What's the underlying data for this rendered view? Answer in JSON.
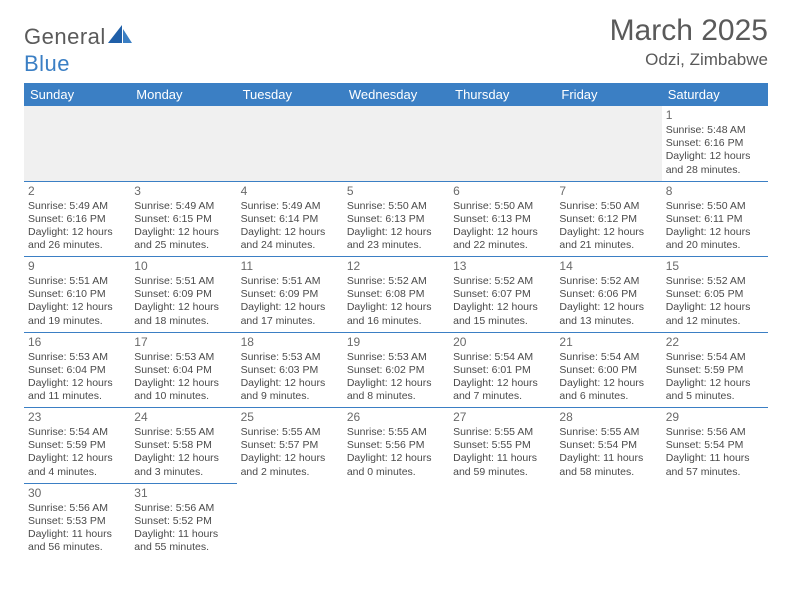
{
  "brand": {
    "name_part1": "General",
    "name_part2": "Blue"
  },
  "title": "March 2025",
  "location": "Odzi, Zimbabwe",
  "colors": {
    "header_bg": "#3b7fc4",
    "header_text": "#ffffff",
    "border": "#3b7fc4",
    "text": "#4a4a4a",
    "muted": "#6a6a6a",
    "empty_bg": "#f0f0f0"
  },
  "day_headers": [
    "Sunday",
    "Monday",
    "Tuesday",
    "Wednesday",
    "Thursday",
    "Friday",
    "Saturday"
  ],
  "weeks": [
    [
      null,
      null,
      null,
      null,
      null,
      null,
      {
        "n": "1",
        "sr": "Sunrise: 5:48 AM",
        "ss": "Sunset: 6:16 PM",
        "d1": "Daylight: 12 hours",
        "d2": "and 28 minutes."
      }
    ],
    [
      {
        "n": "2",
        "sr": "Sunrise: 5:49 AM",
        "ss": "Sunset: 6:16 PM",
        "d1": "Daylight: 12 hours",
        "d2": "and 26 minutes."
      },
      {
        "n": "3",
        "sr": "Sunrise: 5:49 AM",
        "ss": "Sunset: 6:15 PM",
        "d1": "Daylight: 12 hours",
        "d2": "and 25 minutes."
      },
      {
        "n": "4",
        "sr": "Sunrise: 5:49 AM",
        "ss": "Sunset: 6:14 PM",
        "d1": "Daylight: 12 hours",
        "d2": "and 24 minutes."
      },
      {
        "n": "5",
        "sr": "Sunrise: 5:50 AM",
        "ss": "Sunset: 6:13 PM",
        "d1": "Daylight: 12 hours",
        "d2": "and 23 minutes."
      },
      {
        "n": "6",
        "sr": "Sunrise: 5:50 AM",
        "ss": "Sunset: 6:13 PM",
        "d1": "Daylight: 12 hours",
        "d2": "and 22 minutes."
      },
      {
        "n": "7",
        "sr": "Sunrise: 5:50 AM",
        "ss": "Sunset: 6:12 PM",
        "d1": "Daylight: 12 hours",
        "d2": "and 21 minutes."
      },
      {
        "n": "8",
        "sr": "Sunrise: 5:50 AM",
        "ss": "Sunset: 6:11 PM",
        "d1": "Daylight: 12 hours",
        "d2": "and 20 minutes."
      }
    ],
    [
      {
        "n": "9",
        "sr": "Sunrise: 5:51 AM",
        "ss": "Sunset: 6:10 PM",
        "d1": "Daylight: 12 hours",
        "d2": "and 19 minutes."
      },
      {
        "n": "10",
        "sr": "Sunrise: 5:51 AM",
        "ss": "Sunset: 6:09 PM",
        "d1": "Daylight: 12 hours",
        "d2": "and 18 minutes."
      },
      {
        "n": "11",
        "sr": "Sunrise: 5:51 AM",
        "ss": "Sunset: 6:09 PM",
        "d1": "Daylight: 12 hours",
        "d2": "and 17 minutes."
      },
      {
        "n": "12",
        "sr": "Sunrise: 5:52 AM",
        "ss": "Sunset: 6:08 PM",
        "d1": "Daylight: 12 hours",
        "d2": "and 16 minutes."
      },
      {
        "n": "13",
        "sr": "Sunrise: 5:52 AM",
        "ss": "Sunset: 6:07 PM",
        "d1": "Daylight: 12 hours",
        "d2": "and 15 minutes."
      },
      {
        "n": "14",
        "sr": "Sunrise: 5:52 AM",
        "ss": "Sunset: 6:06 PM",
        "d1": "Daylight: 12 hours",
        "d2": "and 13 minutes."
      },
      {
        "n": "15",
        "sr": "Sunrise: 5:52 AM",
        "ss": "Sunset: 6:05 PM",
        "d1": "Daylight: 12 hours",
        "d2": "and 12 minutes."
      }
    ],
    [
      {
        "n": "16",
        "sr": "Sunrise: 5:53 AM",
        "ss": "Sunset: 6:04 PM",
        "d1": "Daylight: 12 hours",
        "d2": "and 11 minutes."
      },
      {
        "n": "17",
        "sr": "Sunrise: 5:53 AM",
        "ss": "Sunset: 6:04 PM",
        "d1": "Daylight: 12 hours",
        "d2": "and 10 minutes."
      },
      {
        "n": "18",
        "sr": "Sunrise: 5:53 AM",
        "ss": "Sunset: 6:03 PM",
        "d1": "Daylight: 12 hours",
        "d2": "and 9 minutes."
      },
      {
        "n": "19",
        "sr": "Sunrise: 5:53 AM",
        "ss": "Sunset: 6:02 PM",
        "d1": "Daylight: 12 hours",
        "d2": "and 8 minutes."
      },
      {
        "n": "20",
        "sr": "Sunrise: 5:54 AM",
        "ss": "Sunset: 6:01 PM",
        "d1": "Daylight: 12 hours",
        "d2": "and 7 minutes."
      },
      {
        "n": "21",
        "sr": "Sunrise: 5:54 AM",
        "ss": "Sunset: 6:00 PM",
        "d1": "Daylight: 12 hours",
        "d2": "and 6 minutes."
      },
      {
        "n": "22",
        "sr": "Sunrise: 5:54 AM",
        "ss": "Sunset: 5:59 PM",
        "d1": "Daylight: 12 hours",
        "d2": "and 5 minutes."
      }
    ],
    [
      {
        "n": "23",
        "sr": "Sunrise: 5:54 AM",
        "ss": "Sunset: 5:59 PM",
        "d1": "Daylight: 12 hours",
        "d2": "and 4 minutes."
      },
      {
        "n": "24",
        "sr": "Sunrise: 5:55 AM",
        "ss": "Sunset: 5:58 PM",
        "d1": "Daylight: 12 hours",
        "d2": "and 3 minutes."
      },
      {
        "n": "25",
        "sr": "Sunrise: 5:55 AM",
        "ss": "Sunset: 5:57 PM",
        "d1": "Daylight: 12 hours",
        "d2": "and 2 minutes."
      },
      {
        "n": "26",
        "sr": "Sunrise: 5:55 AM",
        "ss": "Sunset: 5:56 PM",
        "d1": "Daylight: 12 hours",
        "d2": "and 0 minutes."
      },
      {
        "n": "27",
        "sr": "Sunrise: 5:55 AM",
        "ss": "Sunset: 5:55 PM",
        "d1": "Daylight: 11 hours",
        "d2": "and 59 minutes."
      },
      {
        "n": "28",
        "sr": "Sunrise: 5:55 AM",
        "ss": "Sunset: 5:54 PM",
        "d1": "Daylight: 11 hours",
        "d2": "and 58 minutes."
      },
      {
        "n": "29",
        "sr": "Sunrise: 5:56 AM",
        "ss": "Sunset: 5:54 PM",
        "d1": "Daylight: 11 hours",
        "d2": "and 57 minutes."
      }
    ],
    [
      {
        "n": "30",
        "sr": "Sunrise: 5:56 AM",
        "ss": "Sunset: 5:53 PM",
        "d1": "Daylight: 11 hours",
        "d2": "and 56 minutes."
      },
      {
        "n": "31",
        "sr": "Sunrise: 5:56 AM",
        "ss": "Sunset: 5:52 PM",
        "d1": "Daylight: 11 hours",
        "d2": "and 55 minutes."
      },
      null,
      null,
      null,
      null,
      null
    ]
  ]
}
